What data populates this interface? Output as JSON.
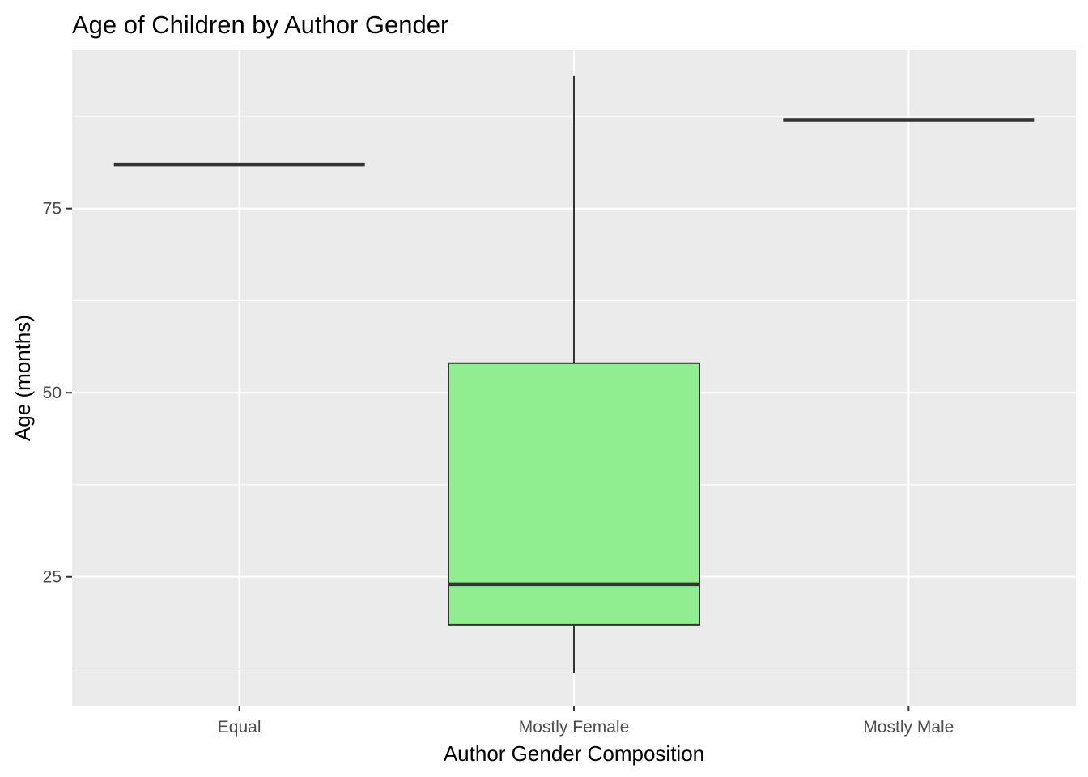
{
  "chart_data": {
    "type": "box",
    "title": "Age of Children by Author Gender",
    "xlabel": "Author Gender Composition",
    "ylabel": "Age (months)",
    "categories": [
      "Equal",
      "Mostly Female",
      "Mostly Male"
    ],
    "ylim": [
      7.5,
      96.5
    ],
    "yticks": [
      25,
      50,
      75
    ],
    "grid": true,
    "legend": "none",
    "box_fill": "#90EE90",
    "box_outline": "#333333",
    "panel_background": "#EBEBEB",
    "gridline_color": "#FFFFFF",
    "boxes": [
      {
        "category": "Equal",
        "min": 81,
        "q1": 81,
        "median": 81,
        "q3": 81,
        "max": 81
      },
      {
        "category": "Mostly Female",
        "min": 12,
        "q1": 18.5,
        "median": 24,
        "q3": 54,
        "max": 93
      },
      {
        "category": "Mostly Male",
        "min": 87,
        "q1": 87,
        "median": 87,
        "q3": 87,
        "max": 87
      }
    ]
  }
}
